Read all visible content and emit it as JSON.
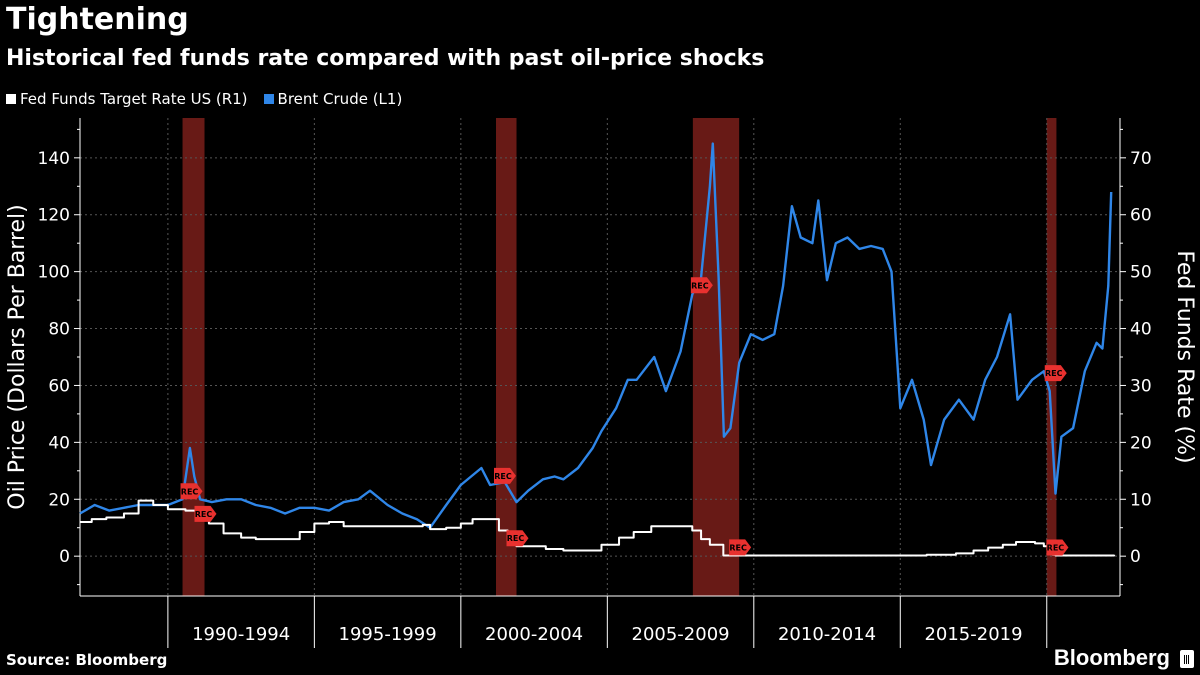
{
  "title": "Tightening",
  "subtitle": "Historical fed funds rate compared with past oil-price shocks",
  "source": "Source: Bloomberg",
  "brand": "Bloomberg",
  "colors": {
    "background": "#000000",
    "oil": "#2f86e8",
    "fed": "#ffffff",
    "recession": "#7a1e1a",
    "marker": "#e8312f",
    "grid": "#555555",
    "fed_dip": "#f09a20"
  },
  "chart_data": {
    "type": "line",
    "title": "Tightening",
    "subtitle": "Historical fed funds rate compared with past oil-price shocks",
    "ylabel_left": "Oil Price (Dollars Per Barrel)",
    "ylabel_right": "Fed Funds Rate (%)",
    "ylim_left": [
      -14,
      154
    ],
    "ylim_right": [
      -7,
      77
    ],
    "yticks_left": [
      0,
      20,
      40,
      60,
      80,
      100,
      120,
      140
    ],
    "yticks_right": [
      0,
      10,
      20,
      30,
      40,
      50,
      60,
      70
    ],
    "xlim": [
      1987.0,
      2022.5
    ],
    "period_labels": [
      "1990-1994",
      "1995-1999",
      "2000-2004",
      "2005-2009",
      "2010-2014",
      "2015-2019"
    ],
    "period_starts": [
      1990,
      1995,
      2000,
      2005,
      2010,
      2015,
      2020
    ],
    "legend": [
      "Fed Funds Target Rate US (R1)",
      "Brent Crude (L1)"
    ],
    "grid": true,
    "recessions": [
      {
        "start": 1990.5,
        "end": 1991.25,
        "label": "REC"
      },
      {
        "start": 2001.2,
        "end": 2001.9,
        "label": "REC"
      },
      {
        "start": 2007.92,
        "end": 2009.5,
        "label": "REC"
      },
      {
        "start": 2020.0,
        "end": 2020.33,
        "label": "REC"
      }
    ],
    "series": [
      {
        "name": "Brent Crude (L1)",
        "axis": "left",
        "x": [
          1987.0,
          1987.5,
          1988.0,
          1988.5,
          1989.0,
          1989.5,
          1990.0,
          1990.5,
          1990.75,
          1990.9,
          1991.1,
          1991.5,
          1992.0,
          1992.5,
          1993.0,
          1993.5,
          1994.0,
          1994.5,
          1995.0,
          1995.5,
          1996.0,
          1996.5,
          1996.9,
          1997.5,
          1998.0,
          1998.5,
          1998.95,
          1999.5,
          2000.0,
          2000.7,
          2001.0,
          2001.5,
          2001.9,
          2002.3,
          2002.8,
          2003.2,
          2003.5,
          2004.0,
          2004.5,
          2004.8,
          2005.3,
          2005.7,
          2006.0,
          2006.6,
          2007.0,
          2007.5,
          2007.9,
          2008.2,
          2008.5,
          2008.6,
          2008.8,
          2008.98,
          2009.2,
          2009.5,
          2009.9,
          2010.3,
          2010.7,
          2011.0,
          2011.3,
          2011.6,
          2012.0,
          2012.2,
          2012.5,
          2012.8,
          2013.2,
          2013.6,
          2014.0,
          2014.4,
          2014.7,
          2015.0,
          2015.4,
          2015.8,
          2016.05,
          2016.5,
          2017.0,
          2017.5,
          2017.9,
          2018.3,
          2018.75,
          2019.0,
          2019.5,
          2019.9,
          2020.1,
          2020.3,
          2020.5,
          2020.9,
          2021.3,
          2021.7,
          2021.9,
          2022.1,
          2022.2
        ],
        "y": [
          15,
          18,
          16,
          17,
          18,
          18,
          18,
          20,
          38,
          28,
          20,
          19,
          20,
          20,
          18,
          17,
          15,
          17,
          17,
          16,
          19,
          20,
          23,
          18,
          15,
          13,
          10,
          18,
          25,
          31,
          25,
          26,
          19,
          23,
          27,
          28,
          27,
          31,
          38,
          44,
          52,
          62,
          62,
          70,
          58,
          72,
          92,
          98,
          130,
          145,
          98,
          42,
          45,
          68,
          78,
          76,
          78,
          95,
          123,
          112,
          110,
          125,
          97,
          110,
          112,
          108,
          109,
          108,
          100,
          52,
          62,
          48,
          32,
          48,
          55,
          48,
          62,
          70,
          85,
          55,
          62,
          65,
          58,
          22,
          42,
          45,
          65,
          75,
          73,
          95,
          128
        ]
      },
      {
        "name": "Fed Funds Target Rate US (R1)",
        "axis": "right",
        "x": [
          1987.0,
          1987.4,
          1987.9,
          1988.5,
          1989.0,
          1989.5,
          1990.0,
          1990.6,
          1991.0,
          1991.4,
          1991.9,
          1992.5,
          1993.0,
          1994.0,
          1994.5,
          1995.0,
          1995.5,
          1996.0,
          1998.7,
          1998.95,
          1999.5,
          2000.0,
          2000.4,
          2000.95,
          2001.3,
          2001.6,
          2001.9,
          2002.9,
          2003.5,
          2004.4,
          2004.8,
          2005.4,
          2005.9,
          2006.5,
          2007.6,
          2007.9,
          2008.2,
          2008.5,
          2008.96,
          2015.9,
          2016.9,
          2017.5,
          2018.0,
          2018.5,
          2018.95,
          2019.6,
          2019.9,
          2020.2,
          2020.3,
          2022.0,
          2022.3
        ],
        "y": [
          6.0,
          6.5,
          6.8,
          7.5,
          9.75,
          9.0,
          8.25,
          8.0,
          6.5,
          5.75,
          4.0,
          3.25,
          3.0,
          3.0,
          4.25,
          5.75,
          6.0,
          5.25,
          5.5,
          4.75,
          5.0,
          5.75,
          6.5,
          6.5,
          4.5,
          3.5,
          1.75,
          1.25,
          1.0,
          1.0,
          2.0,
          3.25,
          4.25,
          5.25,
          5.25,
          4.5,
          3.0,
          2.0,
          0.12,
          0.25,
          0.5,
          1.0,
          1.5,
          2.0,
          2.5,
          2.25,
          1.75,
          0.25,
          0.12,
          0.12,
          0.25
        ]
      }
    ]
  }
}
